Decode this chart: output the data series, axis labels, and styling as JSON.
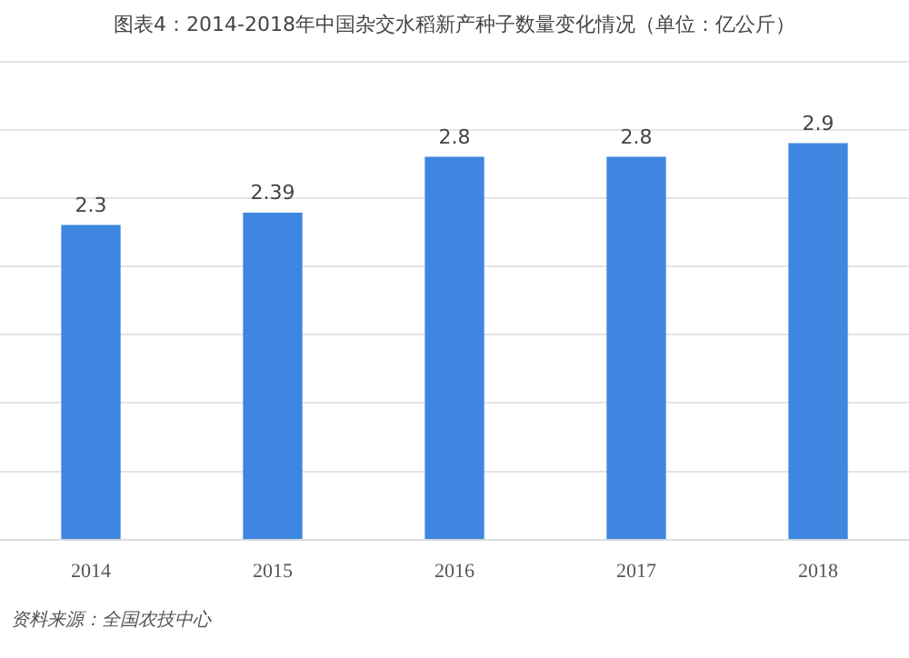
{
  "chart_data": {
    "type": "bar",
    "title": "图表4：2014-2018年中国杂交水稻新产种子数量变化情况（单位：亿公斤）",
    "categories": [
      "2014",
      "2015",
      "2016",
      "2017",
      "2018"
    ],
    "values": [
      2.3,
      2.39,
      2.8,
      2.8,
      2.9
    ],
    "color": "#3f86e0",
    "ylim": [
      0,
      3.5
    ],
    "yticks": [
      0,
      0.5,
      1,
      1.5,
      2,
      2.5,
      3,
      3.5
    ],
    "tick_labels": "x",
    "grid": "y",
    "data_labels": true,
    "annotations": [
      "资料来源：全国农技中心"
    ]
  }
}
